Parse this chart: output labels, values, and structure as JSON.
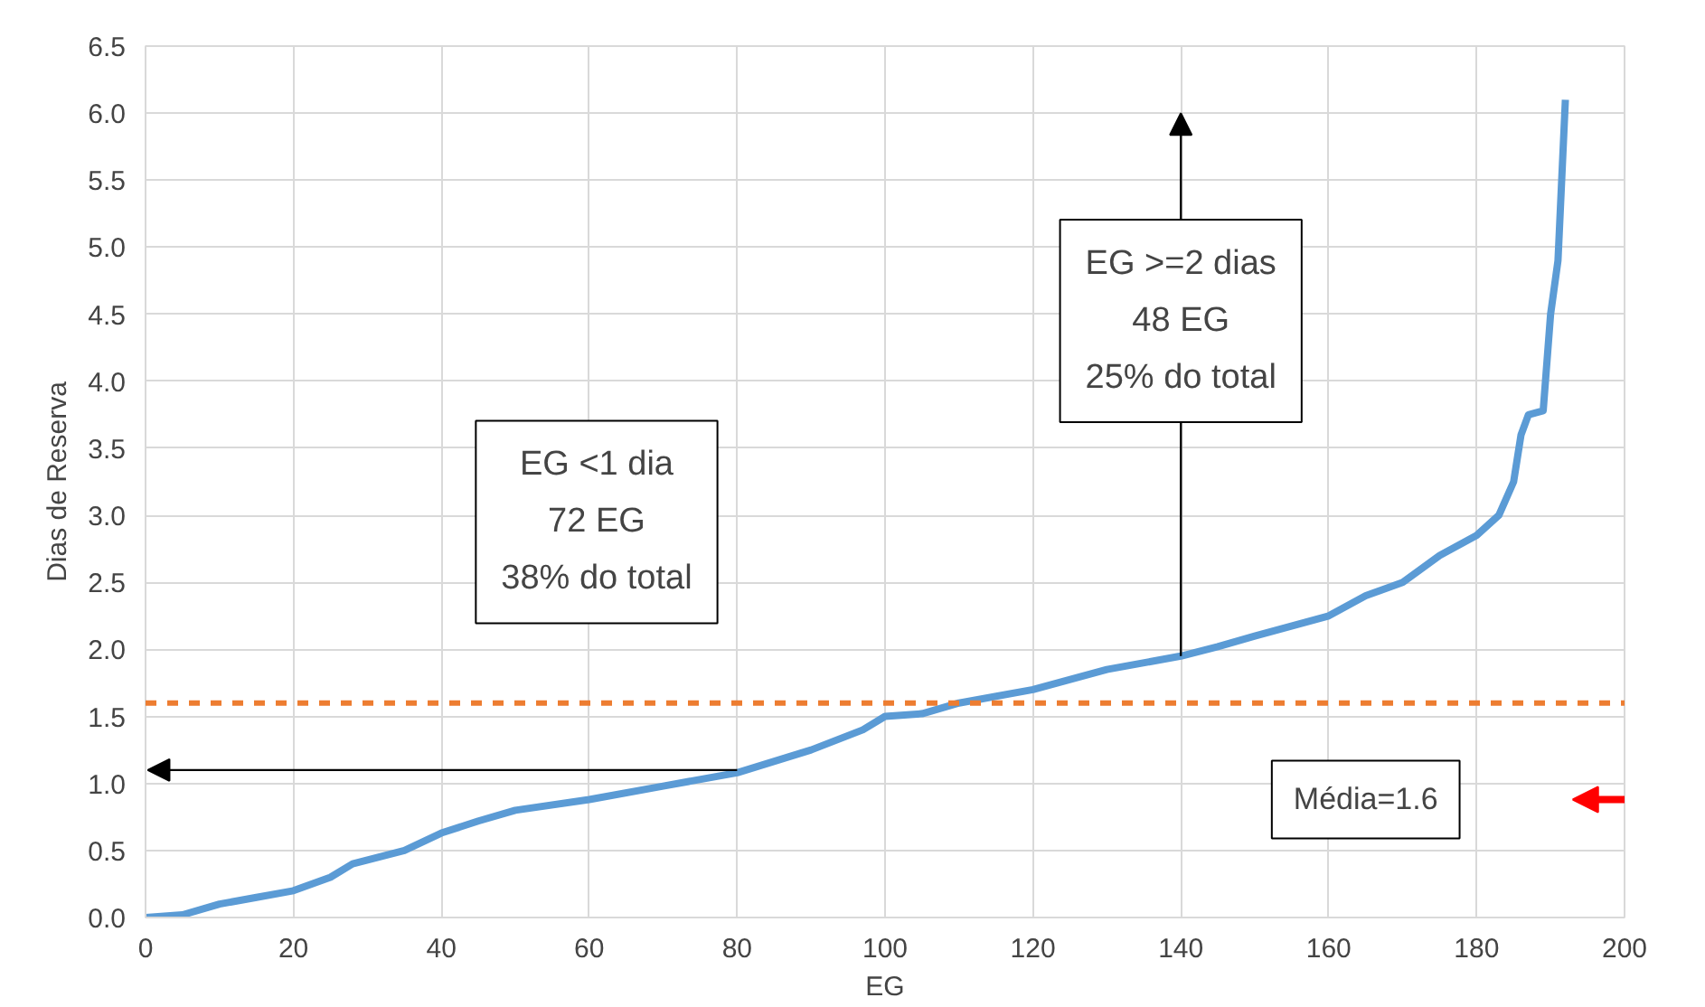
{
  "chart_data": {
    "type": "line",
    "xlabel": "EG",
    "ylabel": "Dias de Reserva",
    "x": [
      0,
      5,
      10,
      15,
      20,
      25,
      28,
      35,
      40,
      45,
      50,
      60,
      70,
      80,
      90,
      97,
      100,
      105,
      110,
      120,
      130,
      140,
      145,
      150,
      160,
      165,
      170,
      175,
      180,
      183,
      185,
      186,
      187,
      189,
      190,
      191,
      192
    ],
    "series": [
      {
        "color": "#5b9bd5",
        "values": [
          0,
          0.02,
          0.1,
          0.15,
          0.2,
          0.3,
          0.4,
          0.5,
          0.63,
          0.72,
          0.8,
          0.88,
          0.98,
          1.08,
          1.25,
          1.4,
          1.5,
          1.52,
          1.6,
          1.7,
          1.85,
          1.95,
          2.02,
          2.1,
          2.25,
          2.4,
          2.5,
          2.7,
          2.85,
          3.0,
          3.25,
          3.6,
          3.75,
          3.78,
          4.5,
          4.9,
          6.1
        ]
      }
    ],
    "xlim": [
      0,
      200
    ],
    "xticks": [
      0,
      20,
      40,
      60,
      80,
      100,
      120,
      140,
      160,
      180,
      200
    ],
    "ylim": [
      0,
      6.5
    ],
    "yticks": [
      {
        "value": 0,
        "label": "0.0"
      },
      {
        "value": 0.5,
        "label": "0.5"
      },
      {
        "value": 1,
        "label": "1.0"
      },
      {
        "value": 1.5,
        "label": "1.5"
      },
      {
        "value": 2,
        "label": "2.0"
      },
      {
        "value": 2.5,
        "label": "2.5"
      },
      {
        "value": 3,
        "label": "3.0"
      },
      {
        "value": 3.5,
        "label": "3.5"
      },
      {
        "value": 4,
        "label": "4.0"
      },
      {
        "value": 4.5,
        "label": "4.5"
      },
      {
        "value": 5,
        "label": "5.0"
      },
      {
        "value": 5.5,
        "label": "5.5"
      },
      {
        "value": 6,
        "label": "6.0"
      },
      {
        "value": 6.5,
        "label": "6.5"
      }
    ],
    "ref_lines": [
      {
        "axis": "y",
        "value": 1.6,
        "label": "Média=1.6",
        "color": "#ed7d31",
        "line_style": "dashed"
      }
    ],
    "annotations": [
      "EG <1 dia\n72 EG\n38% do total",
      "EG >=2 dias\n48 EG\n25% do total"
    ],
    "grid": true,
    "marker": "none",
    "line_style": "solid"
  }
}
